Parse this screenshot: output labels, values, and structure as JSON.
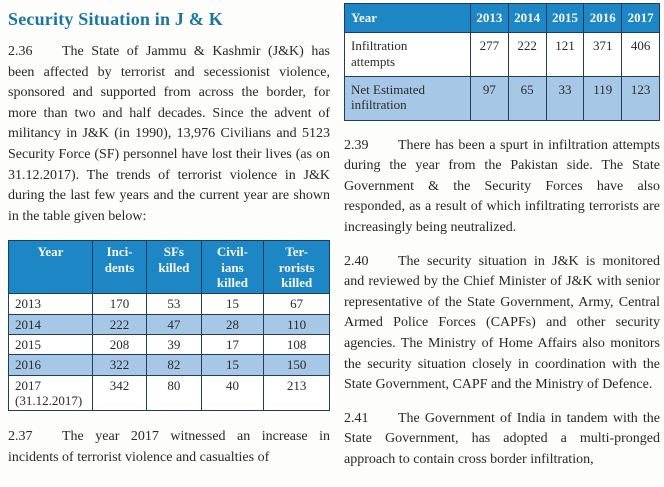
{
  "page": {
    "title": "Security Situation in J & K",
    "accent_color": "#1a769f",
    "table_header_color": "#1d87c6",
    "table_stripe_color": "#a7c7e7",
    "table_border_color": "#1f3c61"
  },
  "left_column": {
    "para_236": {
      "num": "2.36",
      "text": "The State of Jammu & Kashmir (J&K) has been affected by terrorist and secessionist violence, sponsored and supported from across the border, for more than two and half decades. Since the advent of militancy in J&K (in 1990), 13,976 Civilians and 5123 Security Force (SF) personnel have lost their lives (as on 31.12.2017). The trends of terrorist violence in J&K during the last few years and the current year are shown in the table given below:"
    },
    "para_237": {
      "num": "2.37",
      "text": "The year 2017 witnessed an increase in incidents of terrorist violence and casualties of"
    }
  },
  "right_column": {
    "para_239": {
      "num": "2.39",
      "text": "There has been a spurt in infiltration attempts during the year from the Pakistan side. The State Government & the Security Forces have also responded, as a result of which infiltrating terrorists are increasingly being neutralized."
    },
    "para_240": {
      "num": "2.40",
      "text": "The security situation in J&K is monitored and reviewed by the Chief Minister of J&K with senior representative of the State Government, Army, Central Armed Police Forces (CAPFs) and other security agencies. The Ministry of Home Affairs also monitors the security situation closely in coordination with the State Government, CAPF and the Ministry of Defence."
    },
    "para_241": {
      "num": "2.41",
      "text": "The Government of India in tandem with the State Government, has adopted a multi-pronged approach to contain cross border infiltration,"
    }
  },
  "chart_data": [
    {
      "type": "table",
      "name": "terrorist-violence-trends-jk",
      "columns": [
        "Year",
        "Inci-\ndents",
        "SFs\nkilled",
        "Civil-\nians\nkilled",
        "Ter-\nrorists\nkilled"
      ],
      "rows": [
        [
          "2013",
          170,
          53,
          15,
          67
        ],
        [
          "2014",
          222,
          47,
          28,
          110
        ],
        [
          "2015",
          208,
          39,
          17,
          108
        ],
        [
          "2016",
          322,
          82,
          15,
          150
        ],
        [
          "2017\n(31.12.2017)",
          342,
          80,
          40,
          213
        ]
      ]
    },
    {
      "type": "table",
      "name": "infiltration-attempts",
      "columns": [
        "Year",
        "2013",
        "2014",
        "2015",
        "2016",
        "2017"
      ],
      "rows": [
        [
          "Infiltration\nattempts",
          277,
          222,
          121,
          371,
          406
        ],
        [
          "Net Estimated\ninfiltration",
          97,
          65,
          33,
          119,
          123
        ]
      ]
    }
  ]
}
